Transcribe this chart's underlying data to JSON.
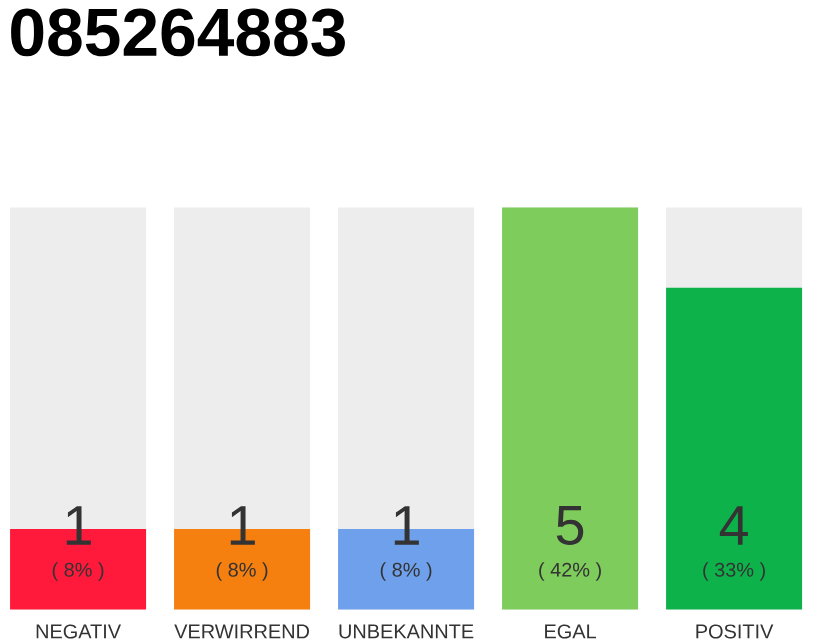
{
  "chart_data": {
    "type": "bar",
    "title": "085264883",
    "categories": [
      "NEGATIV",
      "VERWIRREND",
      "UNBEKANNTE",
      "EGAL",
      "POSITIV"
    ],
    "values": [
      1,
      1,
      1,
      5,
      4
    ],
    "colors": [
      "#ff1a3c",
      "#f57f0f",
      "#6fa0ec",
      "#7dcc5c",
      "#0db34a"
    ],
    "ylim": [
      0,
      5
    ],
    "data_labels": true,
    "annotations": [
      "( 8% )",
      "( 8% )",
      "( 8% )",
      "( 42% )",
      "( 33% )"
    ]
  }
}
